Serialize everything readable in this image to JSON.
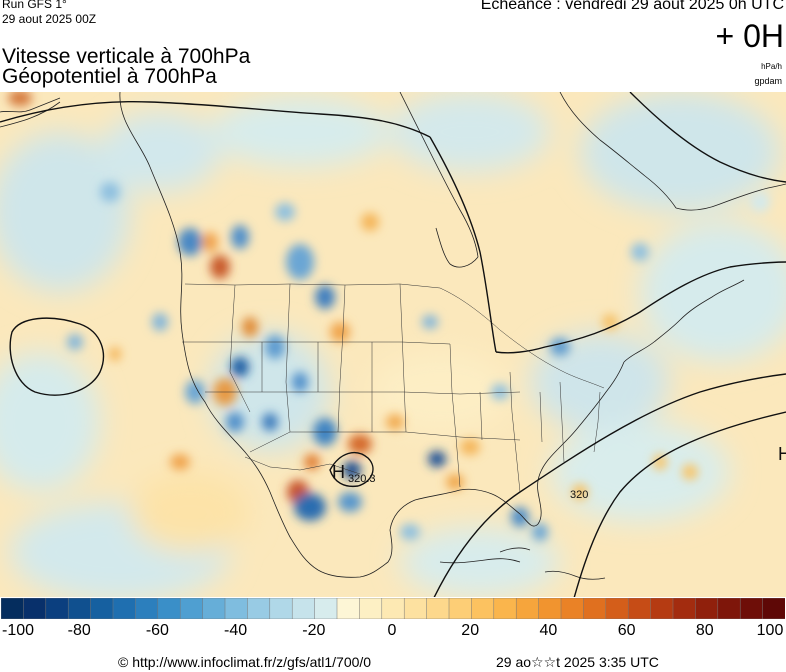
{
  "header": {
    "run_label": "Run GFS 1°",
    "run_date": "29 aout 2025 00Z",
    "valid_label": "Echéance : vendredi 29 aout 2025 0h UTC",
    "forecast_hour": "+ 0H",
    "title_line1": "Vitesse verticale à 700hPa",
    "title_line2": "Géopotentiel à 700hPa",
    "unit_primary": "hPa/h",
    "unit_secondary": "gpdam"
  },
  "map": {
    "field": "vertical-velocity-700hPa",
    "contour_labels": [
      "320.3",
      "320"
    ],
    "pressure_center_labels": [
      "H",
      "H"
    ]
  },
  "colorbar": {
    "min": -100,
    "max": 100,
    "step": 5,
    "tick_labels": [
      "-100",
      "-80",
      "-60",
      "-40",
      "-20",
      "0",
      "20",
      "40",
      "60",
      "80",
      "100"
    ],
    "colors": [
      "#052d5e",
      "#08306b",
      "#0b3f7f",
      "#10508f",
      "#1660a0",
      "#1f6fb0",
      "#2c7fbd",
      "#3a8fc8",
      "#4f9fd1",
      "#66aed8",
      "#7fbddf",
      "#98cbe4",
      "#b0d8e8",
      "#c6e3eb",
      "#d7eced",
      "#fdf6d6",
      "#fdf0c4",
      "#fde9b3",
      "#fde1a0",
      "#fdd88c",
      "#fdce76",
      "#fcc260",
      "#fab54c",
      "#f6a53c",
      "#f1942f",
      "#ea8226",
      "#e0701f",
      "#d45e1a",
      "#c64c16",
      "#b53b12",
      "#a32c0f",
      "#90200c",
      "#7e160a",
      "#6e0e08",
      "#5e0806"
    ]
  },
  "footer": {
    "source_url": "© http://www.infoclimat.fr/z/gfs/atl1/700/0",
    "generated": "29 ao☆☆t 2025  3:35 UTC"
  }
}
